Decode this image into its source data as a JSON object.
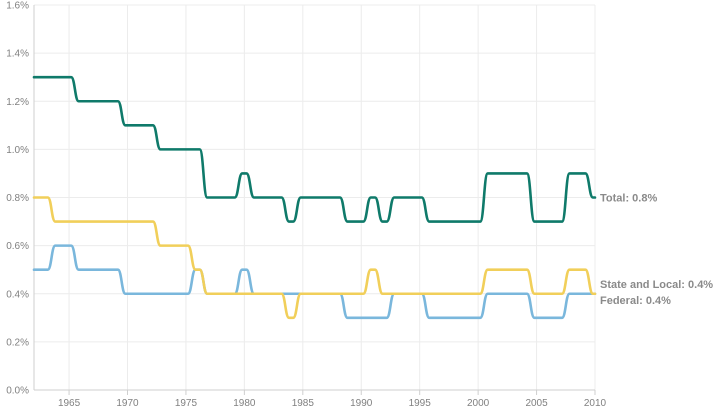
{
  "chart_data": {
    "type": "line",
    "title": "",
    "xlabel": "",
    "ylabel": "",
    "xlim": [
      1962,
      2010
    ],
    "ylim": [
      0,
      1.6
    ],
    "grid": true,
    "x_ticks": [
      1965,
      1970,
      1975,
      1980,
      1985,
      1990,
      1995,
      2000,
      2005,
      2010
    ],
    "x_tick_labels": [
      "1965",
      "1970",
      "1975",
      "1980",
      "1985",
      "1990",
      "1995",
      "2000",
      "2005",
      "2010"
    ],
    "y_ticks": [
      0,
      0.2,
      0.4,
      0.6,
      0.8,
      1.0,
      1.2,
      1.4,
      1.6
    ],
    "y_tick_labels": [
      "0.0%",
      "0.2%",
      "0.4%",
      "0.6%",
      "0.8%",
      "1.0%",
      "1.2%",
      "1.4%",
      "1.6%"
    ],
    "x": [
      1962,
      1963,
      1964,
      1965,
      1966,
      1967,
      1968,
      1969,
      1970,
      1971,
      1972,
      1973,
      1974,
      1975,
      1976,
      1977,
      1978,
      1979,
      1980,
      1981,
      1982,
      1983,
      1984,
      1985,
      1986,
      1987,
      1988,
      1989,
      1990,
      1991,
      1992,
      1993,
      1994,
      1995,
      1996,
      1997,
      1998,
      1999,
      2000,
      2001,
      2002,
      2003,
      2004,
      2005,
      2006,
      2007,
      2008,
      2009,
      2010
    ],
    "series": [
      {
        "key": "total",
        "color": "#0f7a6a",
        "end_label": "Total: 0.8%",
        "values": [
          1.3,
          1.3,
          1.3,
          1.3,
          1.2,
          1.2,
          1.2,
          1.2,
          1.1,
          1.1,
          1.1,
          1.0,
          1.0,
          1.0,
          1.0,
          0.8,
          0.8,
          0.8,
          0.9,
          0.8,
          0.8,
          0.8,
          0.7,
          0.8,
          0.8,
          0.8,
          0.8,
          0.7,
          0.7,
          0.8,
          0.7,
          0.8,
          0.8,
          0.8,
          0.7,
          0.7,
          0.7,
          0.7,
          0.7,
          0.9,
          0.9,
          0.9,
          0.9,
          0.7,
          0.7,
          0.7,
          0.9,
          0.9,
          0.8
        ]
      },
      {
        "key": "state_local",
        "color": "#f1cf5a",
        "end_label": "State and Local: 0.4%",
        "values": [
          0.8,
          0.8,
          0.7,
          0.7,
          0.7,
          0.7,
          0.7,
          0.7,
          0.7,
          0.7,
          0.7,
          0.6,
          0.6,
          0.6,
          0.5,
          0.4,
          0.4,
          0.4,
          0.4,
          0.4,
          0.4,
          0.4,
          0.3,
          0.4,
          0.4,
          0.4,
          0.4,
          0.4,
          0.4,
          0.5,
          0.4,
          0.4,
          0.4,
          0.4,
          0.4,
          0.4,
          0.4,
          0.4,
          0.4,
          0.5,
          0.5,
          0.5,
          0.5,
          0.4,
          0.4,
          0.4,
          0.5,
          0.5,
          0.4
        ]
      },
      {
        "key": "federal",
        "color": "#7ab7dc",
        "end_label": "Federal: 0.4%",
        "values": [
          0.5,
          0.5,
          0.6,
          0.6,
          0.5,
          0.5,
          0.5,
          0.5,
          0.4,
          0.4,
          0.4,
          0.4,
          0.4,
          0.4,
          0.5,
          0.4,
          0.4,
          0.4,
          0.5,
          0.4,
          0.4,
          0.4,
          0.4,
          0.4,
          0.4,
          0.4,
          0.4,
          0.3,
          0.3,
          0.3,
          0.3,
          0.4,
          0.4,
          0.4,
          0.3,
          0.3,
          0.3,
          0.3,
          0.3,
          0.4,
          0.4,
          0.4,
          0.4,
          0.3,
          0.3,
          0.3,
          0.4,
          0.4,
          0.4
        ]
      }
    ]
  }
}
